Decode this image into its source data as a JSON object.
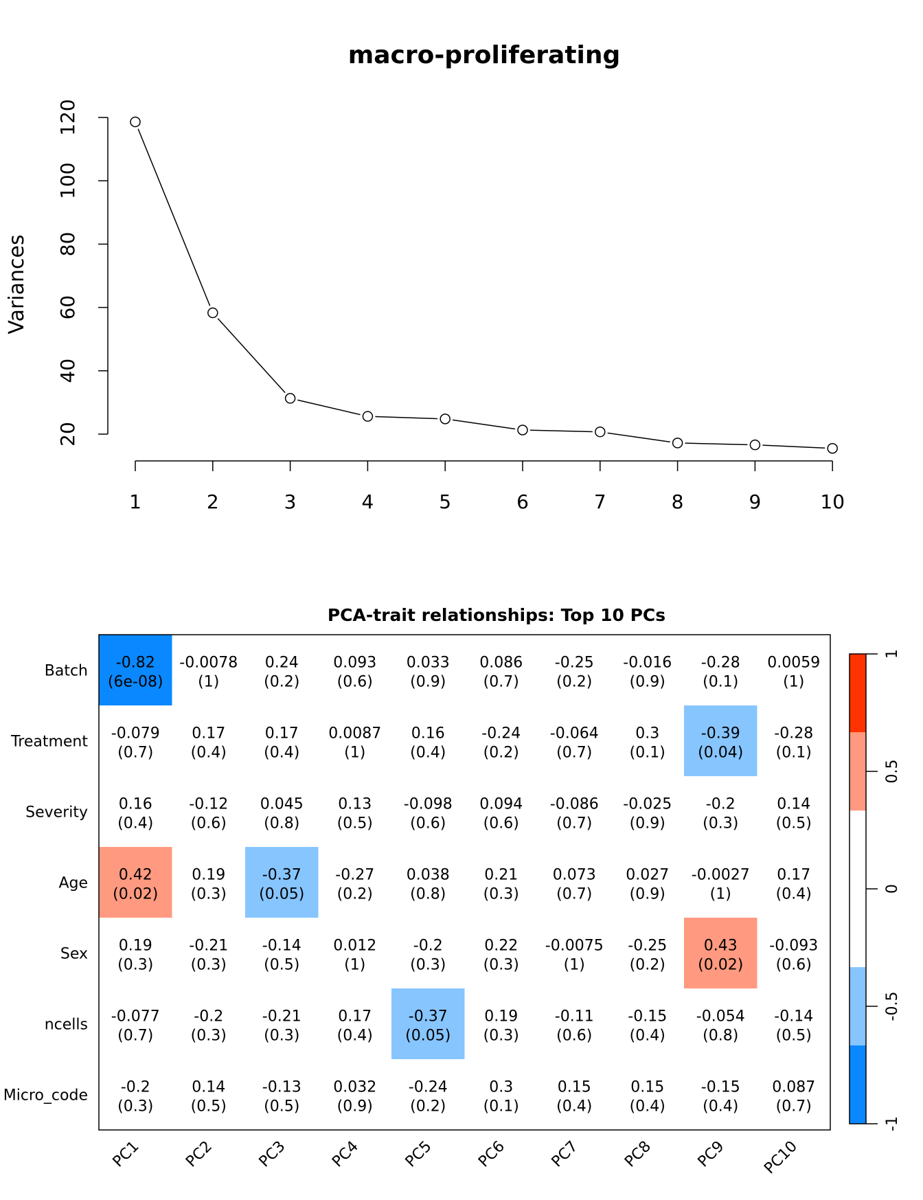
{
  "chart_data": [
    {
      "type": "line",
      "title": "macro-proliferating",
      "xlabel": "",
      "ylabel": "Variances",
      "x": [
        1,
        2,
        3,
        4,
        5,
        6,
        7,
        8,
        9,
        10
      ],
      "values": [
        118.6,
        58.3,
        31.3,
        25.6,
        24.8,
        21.3,
        20.7,
        17.2,
        16.6,
        15.5
      ],
      "yticks": [
        20,
        40,
        60,
        80,
        100,
        120
      ],
      "xticks": [
        "1",
        "2",
        "3",
        "4",
        "5",
        "6",
        "7",
        "8",
        "9",
        "10"
      ],
      "marker": "open-circle",
      "grid": false
    },
    {
      "type": "heatmap",
      "title": "PCA-trait relationships: Top 10 PCs",
      "columns": [
        "PC1",
        "PC2",
        "PC3",
        "PC4",
        "PC5",
        "PC6",
        "PC7",
        "PC8",
        "PC9",
        "PC10"
      ],
      "rows": [
        "Batch",
        "Treatment",
        "Severity",
        "Age",
        "Sex",
        "ncells",
        "Micro_code"
      ],
      "values": [
        [
          "-0.82",
          "-0.0078",
          "0.24",
          "0.093",
          "0.033",
          "0.086",
          "-0.25",
          "-0.016",
          "-0.28",
          "0.0059"
        ],
        [
          "-0.079",
          "0.17",
          "0.17",
          "0.0087",
          "0.16",
          "-0.24",
          "-0.064",
          "0.3",
          "-0.39",
          "-0.28"
        ],
        [
          "0.16",
          "-0.12",
          "0.045",
          "0.13",
          "-0.098",
          "0.094",
          "-0.086",
          "-0.025",
          "-0.2",
          "0.14"
        ],
        [
          "0.42",
          "0.19",
          "-0.37",
          "-0.27",
          "0.038",
          "0.21",
          "0.073",
          "0.027",
          "-0.0027",
          "0.17"
        ],
        [
          "0.19",
          "-0.21",
          "-0.14",
          "0.012",
          "-0.2",
          "0.22",
          "-0.0075",
          "-0.25",
          "0.43",
          "-0.093"
        ],
        [
          "-0.077",
          "-0.2",
          "-0.21",
          "0.17",
          "-0.37",
          "0.19",
          "-0.11",
          "-0.15",
          "-0.054",
          "-0.14"
        ],
        [
          "-0.2",
          "0.14",
          "-0.13",
          "0.032",
          "-0.24",
          "0.3",
          "0.15",
          "0.15",
          "-0.15",
          "0.087"
        ]
      ],
      "pvalues": [
        [
          "(6e-08)",
          "(1)",
          "(0.2)",
          "(0.6)",
          "(0.9)",
          "(0.7)",
          "(0.2)",
          "(0.9)",
          "(0.1)",
          "(1)"
        ],
        [
          "(0.7)",
          "(0.4)",
          "(0.4)",
          "(1)",
          "(0.4)",
          "(0.2)",
          "(0.7)",
          "(0.1)",
          "(0.04)",
          "(0.1)"
        ],
        [
          "(0.4)",
          "(0.6)",
          "(0.8)",
          "(0.5)",
          "(0.6)",
          "(0.6)",
          "(0.7)",
          "(0.9)",
          "(0.3)",
          "(0.5)"
        ],
        [
          "(0.02)",
          "(0.3)",
          "(0.05)",
          "(0.2)",
          "(0.8)",
          "(0.3)",
          "(0.7)",
          "(0.9)",
          "(1)",
          "(0.4)"
        ],
        [
          "(0.3)",
          "(0.3)",
          "(0.5)",
          "(1)",
          "(0.3)",
          "(0.3)",
          "(1)",
          "(0.2)",
          "(0.02)",
          "(0.6)"
        ],
        [
          "(0.7)",
          "(0.3)",
          "(0.3)",
          "(0.4)",
          "(0.05)",
          "(0.3)",
          "(0.6)",
          "(0.4)",
          "(0.8)",
          "(0.5)"
        ],
        [
          "(0.3)",
          "(0.5)",
          "(0.5)",
          "(0.9)",
          "(0.2)",
          "(0.1)",
          "(0.4)",
          "(0.4)",
          "(0.4)",
          "(0.7)"
        ]
      ],
      "colorbar": {
        "range": [
          -1,
          1
        ],
        "ticks": [
          "1",
          "0.5",
          "0",
          "-0.5",
          "-1"
        ],
        "bands": [
          "#0A88FF",
          "#87C5FF",
          "#FFFFFF",
          "#FFFFFF",
          "#FF9A80",
          "#FF3300"
        ]
      }
    }
  ]
}
